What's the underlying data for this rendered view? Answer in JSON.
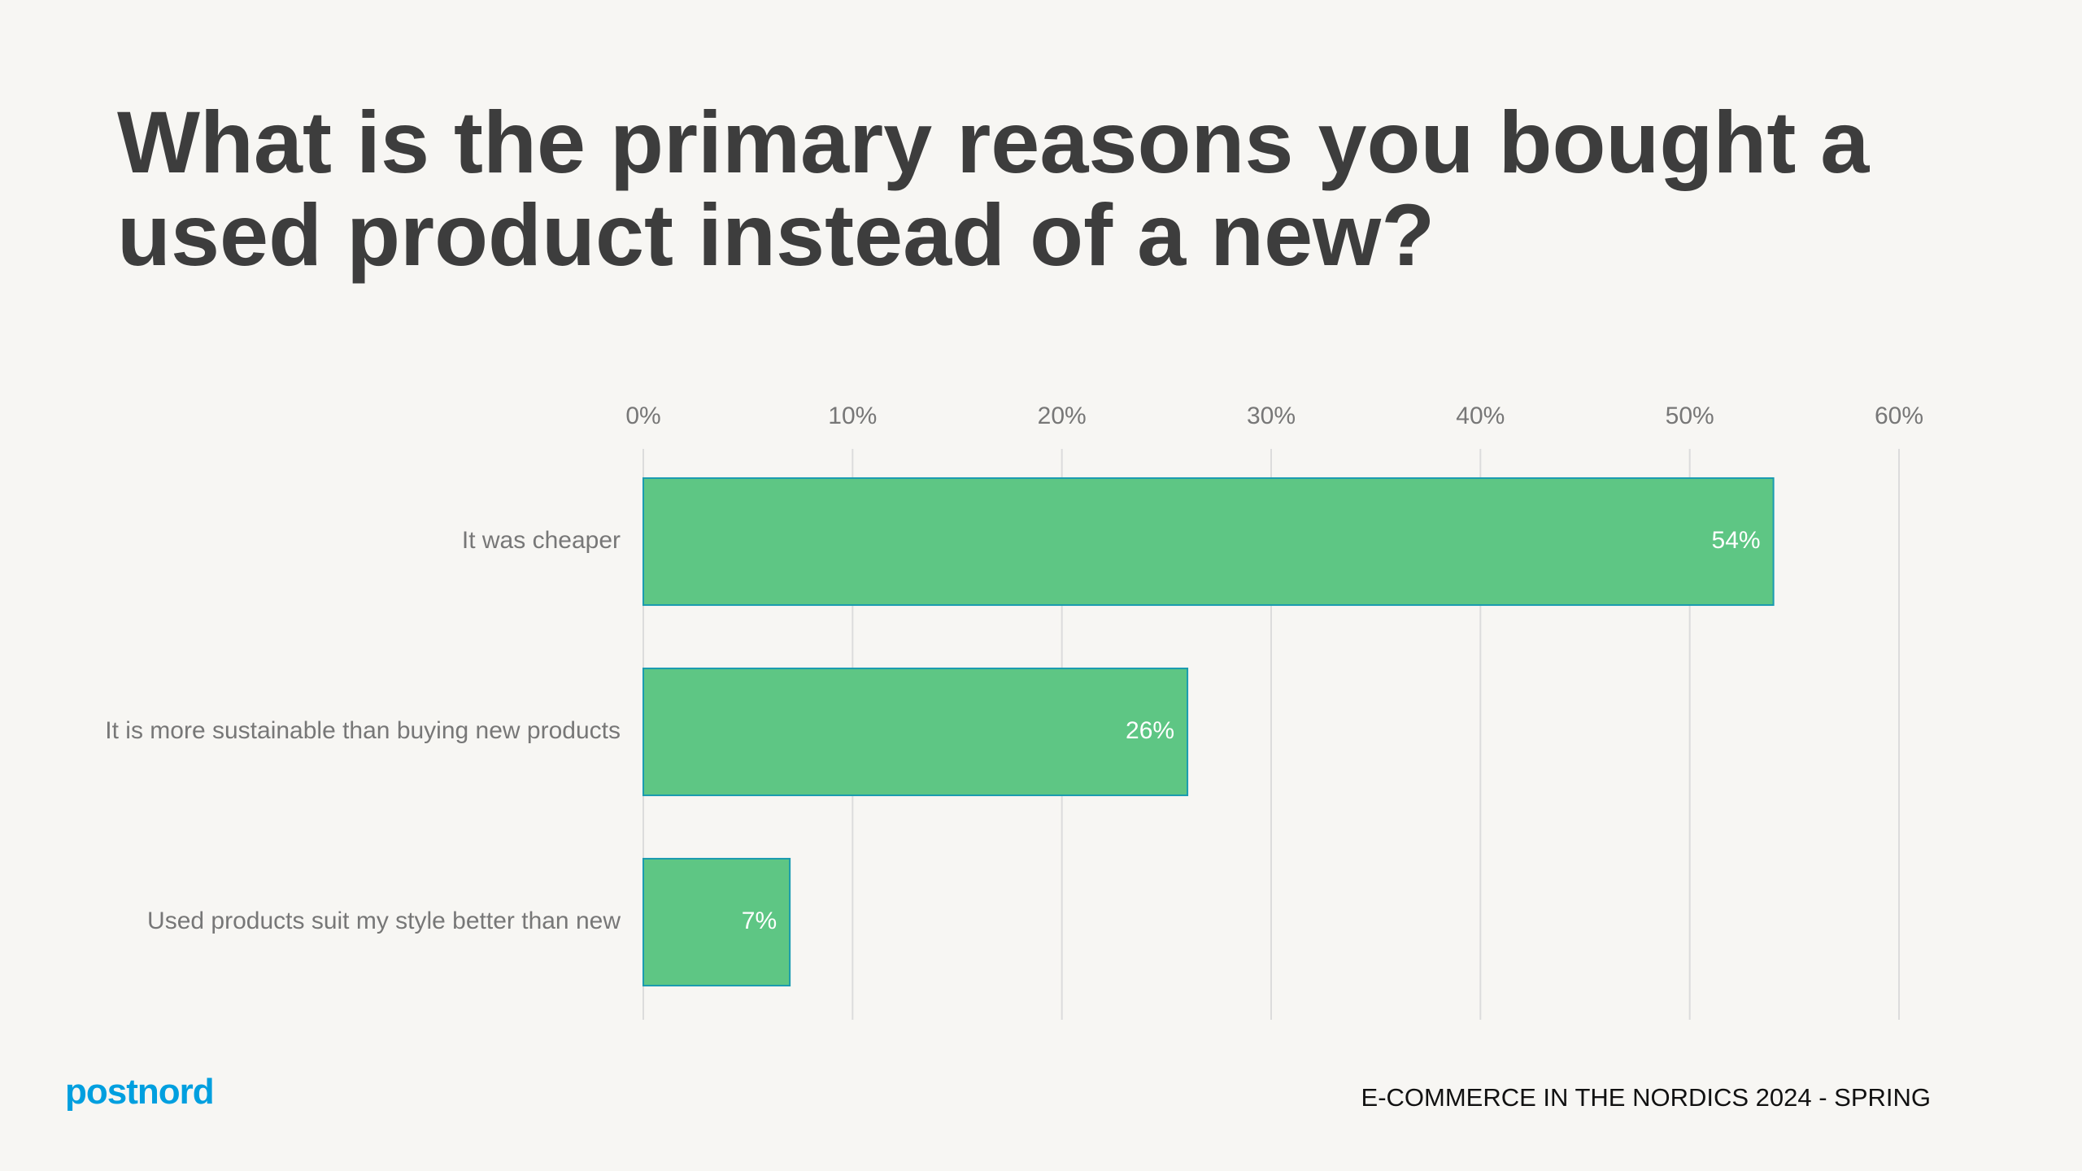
{
  "chart_data": {
    "type": "barh",
    "title": "What is the primary reasons you bought a used product instead of a new?",
    "categories": [
      "It was cheaper",
      "It is more sustainable than buying new products",
      "Used products suit my style better than new"
    ],
    "values": [
      54,
      26,
      7
    ],
    "value_labels": [
      "54%",
      "26%",
      "7%"
    ],
    "color": "#5ec684",
    "xlim": [
      0,
      60
    ],
    "xticks": [
      {
        "value": 0,
        "label": "0%"
      },
      {
        "value": 10,
        "label": "10%"
      },
      {
        "value": 20,
        "label": "20%"
      },
      {
        "value": 30,
        "label": "30%"
      },
      {
        "value": 40,
        "label": "40%"
      },
      {
        "value": 50,
        "label": "50%"
      },
      {
        "value": 60,
        "label": "60%"
      }
    ],
    "grid": true
  },
  "footer": {
    "logo": "postnord",
    "source": "E-COMMERCE IN THE NORDICS 2024 - SPRING"
  }
}
